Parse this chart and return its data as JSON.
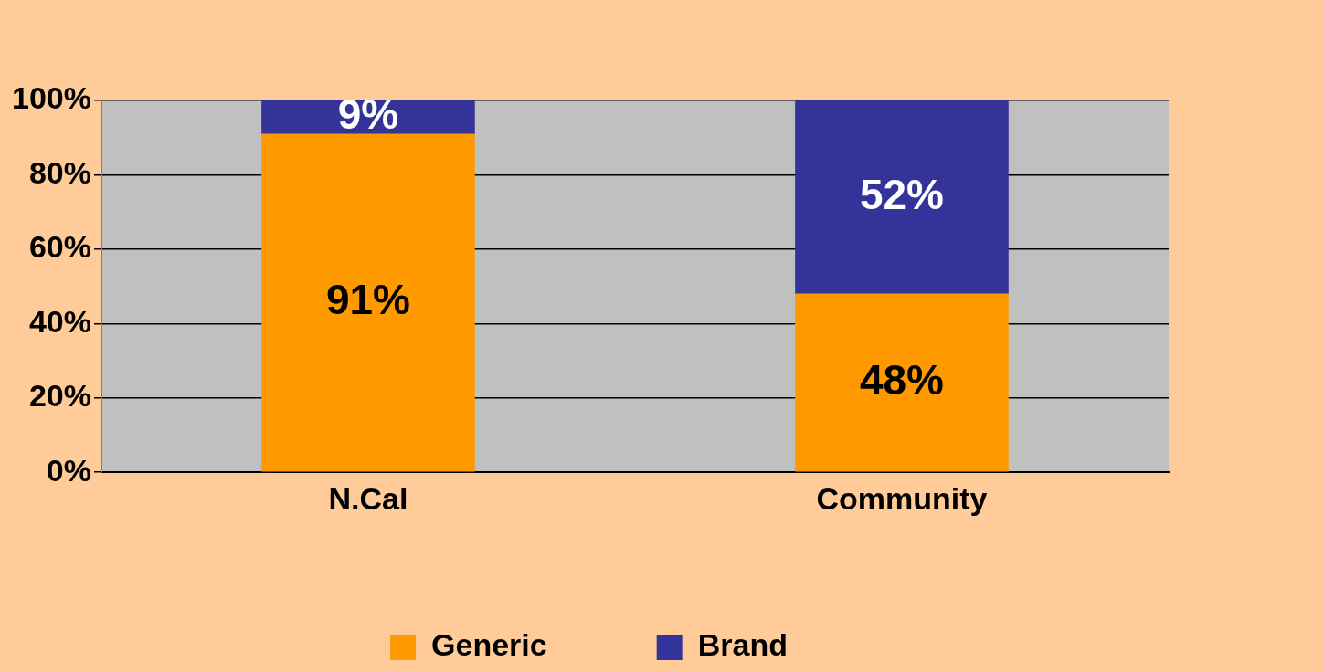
{
  "chart_data": {
    "type": "bar",
    "stacked": true,
    "categories": [
      "N.Cal",
      "Community"
    ],
    "series": [
      {
        "name": "Generic",
        "color": "#ff9900",
        "values": [
          91,
          48
        ],
        "value_labels": [
          "91%",
          "48%"
        ]
      },
      {
        "name": "Brand",
        "color": "#333399",
        "values": [
          9,
          52
        ],
        "value_labels": [
          "9%",
          "52%"
        ]
      }
    ],
    "ylim": [
      0,
      100
    ],
    "yticks": [
      {
        "value": 0,
        "label": "0%"
      },
      {
        "value": 20,
        "label": "20%"
      },
      {
        "value": 40,
        "label": "40%"
      },
      {
        "value": 60,
        "label": "60%"
      },
      {
        "value": 80,
        "label": "80%"
      },
      {
        "value": 100,
        "label": "100%"
      }
    ],
    "grid": "y",
    "legend": "bottom"
  }
}
